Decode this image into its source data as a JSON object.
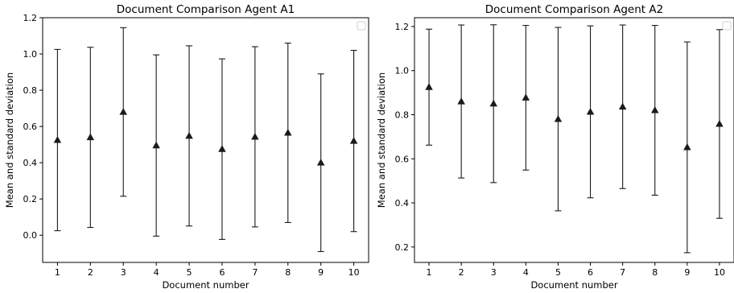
{
  "chart_data": [
    {
      "type": "errorbar",
      "title": "Document Comparison Agent A1",
      "xlabel": "Document number",
      "ylabel": "Mean and standard deviation",
      "x": [
        1,
        2,
        3,
        4,
        5,
        6,
        7,
        8,
        9,
        10
      ],
      "x_tick_labels": [
        "1",
        "2",
        "3",
        "4",
        "5",
        "6",
        "7",
        "8",
        "9",
        "10"
      ],
      "mean": [
        0.525,
        0.54,
        0.68,
        0.495,
        0.548,
        0.475,
        0.543,
        0.565,
        0.4,
        0.52
      ],
      "std": [
        0.5,
        0.497,
        0.465,
        0.5,
        0.497,
        0.498,
        0.497,
        0.495,
        0.49,
        0.5
      ],
      "ylim": [
        -0.15,
        1.2
      ],
      "y_ticks": [
        0.0,
        0.2,
        0.4,
        0.6,
        0.8,
        1.0,
        1.2
      ],
      "y_tick_labels": [
        "0.0",
        "0.2",
        "0.4",
        "0.6",
        "0.8",
        "1.0",
        "1.2"
      ],
      "xlim": [
        0.55,
        10.45
      ],
      "marker": "triangle-up",
      "color": "#1a1a1a",
      "grid": false,
      "legend": "top-right (empty)"
    },
    {
      "type": "errorbar",
      "title": "Document Comparison Agent A2",
      "xlabel": "Document number",
      "ylabel": "Mean and standard deviation",
      "x": [
        1,
        2,
        3,
        4,
        5,
        6,
        7,
        8,
        9,
        10
      ],
      "x_tick_labels": [
        "1",
        "2",
        "3",
        "4",
        "5",
        "6",
        "7",
        "8",
        "9",
        "10"
      ],
      "mean": [
        0.925,
        0.86,
        0.85,
        0.877,
        0.78,
        0.813,
        0.836,
        0.82,
        0.652,
        0.758
      ],
      "std": [
        0.263,
        0.347,
        0.358,
        0.328,
        0.416,
        0.39,
        0.371,
        0.385,
        0.478,
        0.428
      ],
      "ylim": [
        0.13,
        1.24
      ],
      "y_ticks": [
        0.2,
        0.4,
        0.6,
        0.8,
        1.0,
        1.2
      ],
      "y_tick_labels": [
        "0.2",
        "0.4",
        "0.6",
        "0.8",
        "1.0",
        "1.2"
      ],
      "xlim": [
        0.55,
        10.45
      ],
      "marker": "triangle-up",
      "color": "#1a1a1a",
      "grid": false,
      "legend": "top-right (empty)"
    }
  ]
}
